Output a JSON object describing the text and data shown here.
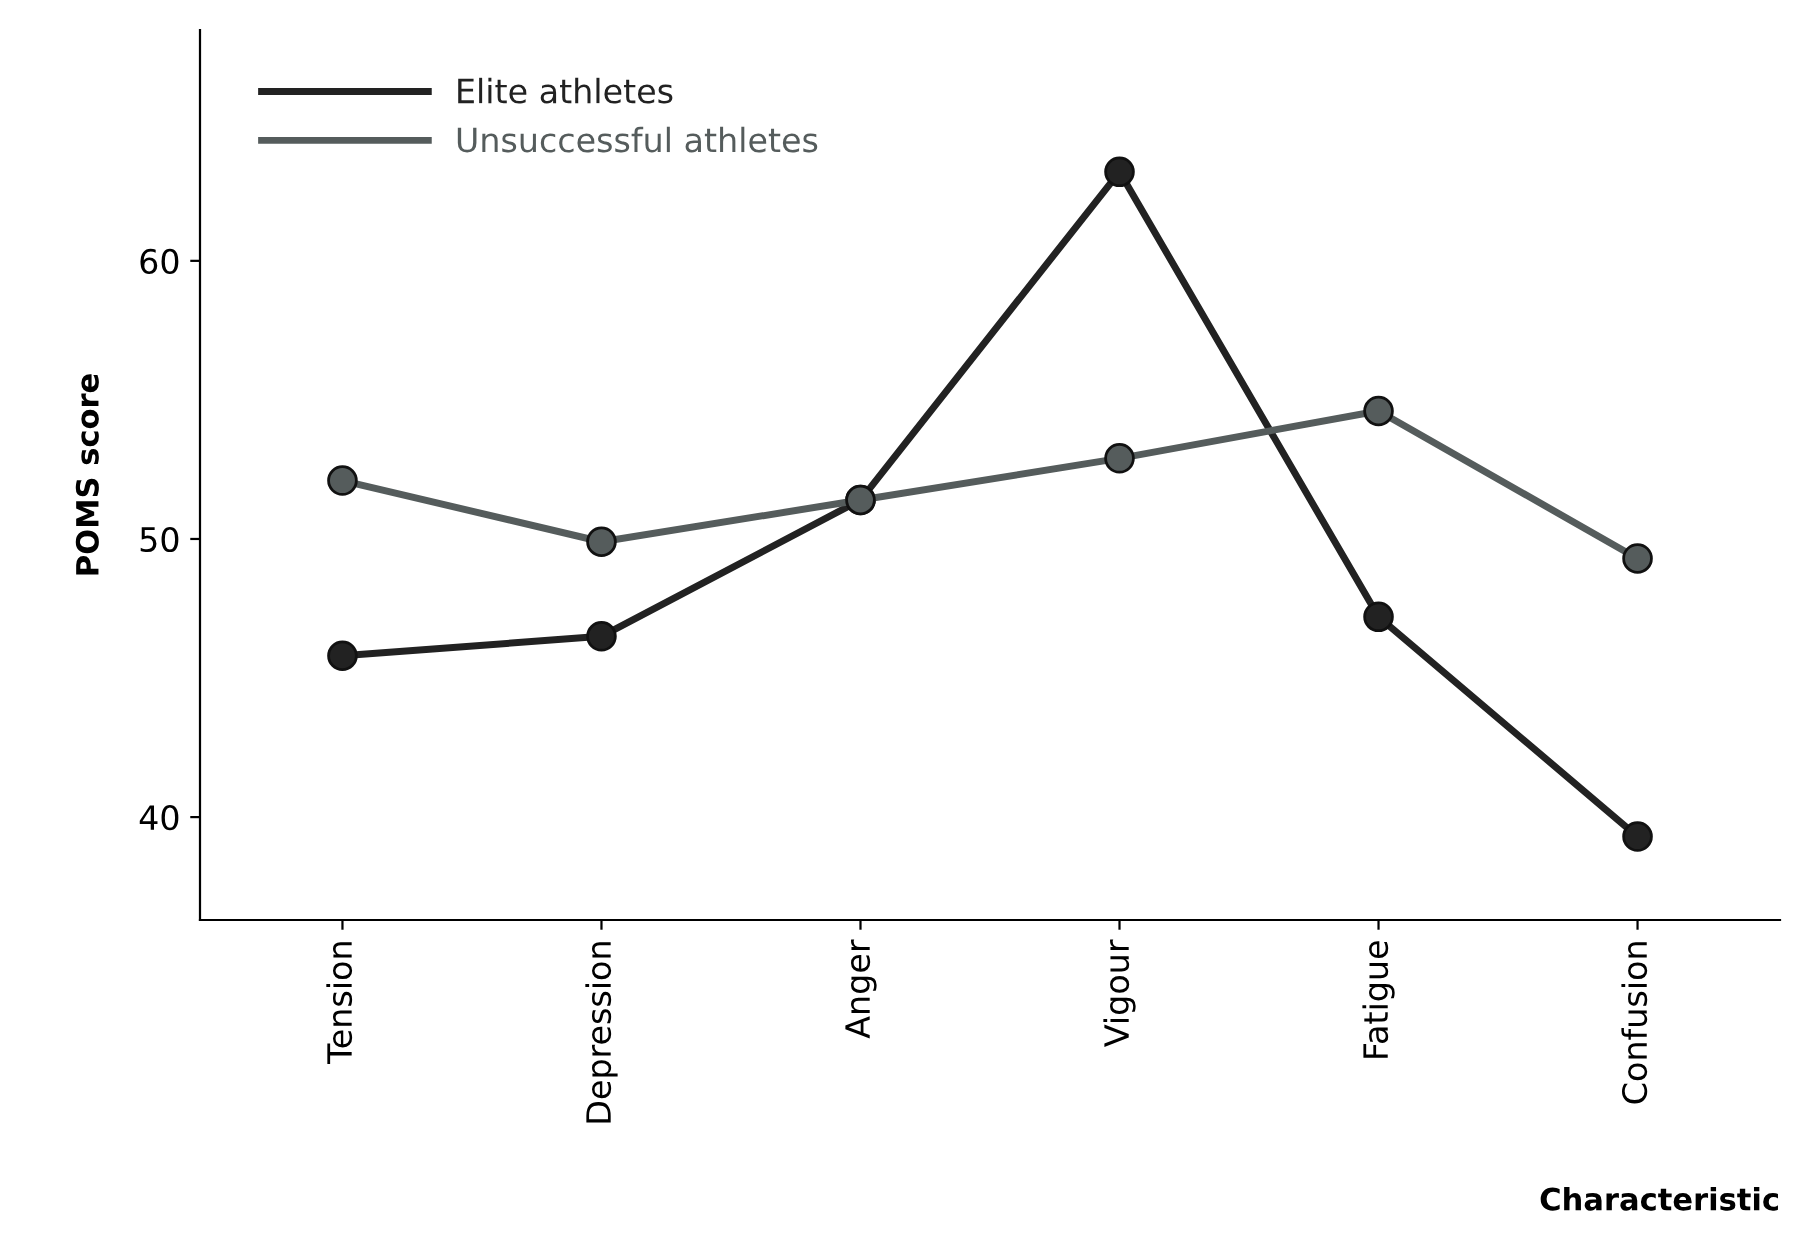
{
  "chart_data": {
    "type": "line",
    "xlabel": "Characteristic",
    "ylabel": "POMS score",
    "categories": [
      "Tension",
      "Depression",
      "Anger",
      "Vigour",
      "Fatigue",
      "Confusion"
    ],
    "series": [
      {
        "name": "Elite athletes",
        "color": "#222222",
        "values": [
          45.8,
          46.5,
          51.4,
          63.2,
          47.2,
          39.3
        ]
      },
      {
        "name": "Unsuccessful athletes",
        "color": "#555c5c",
        "values": [
          52.1,
          49.9,
          51.4,
          52.9,
          54.6,
          49.3
        ]
      }
    ],
    "ylim": [
      36.3,
      68.3
    ],
    "yticks": [
      40,
      50,
      60
    ],
    "grid": false,
    "legend": "top left",
    "marker": "circle",
    "line_style": "solid"
  }
}
